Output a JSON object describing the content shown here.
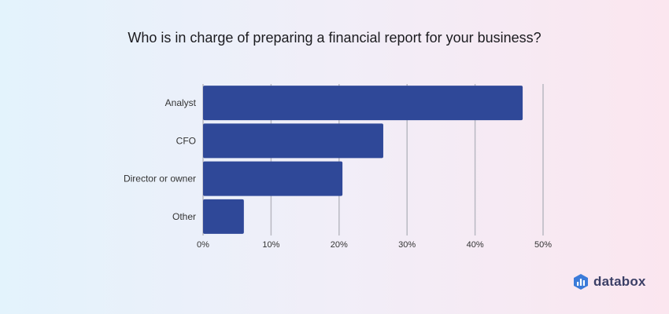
{
  "chart_data": {
    "type": "bar",
    "orientation": "horizontal",
    "title": "Who is in charge of preparing a financial report for your business?",
    "categories": [
      "Analyst",
      "CFO",
      "Director or owner",
      "Other"
    ],
    "values": [
      47,
      26.5,
      20.5,
      6
    ],
    "xlim": [
      0,
      50
    ],
    "xticks": [
      0,
      10,
      20,
      30,
      40,
      50
    ],
    "xtick_labels": [
      "0%",
      "10%",
      "20%",
      "30%",
      "40%",
      "50%"
    ],
    "bar_color": "#2f4898",
    "grid": "vertical"
  },
  "brand": {
    "name": "databox",
    "icon": "databox-logo-icon",
    "color": "#3b7bd9"
  }
}
